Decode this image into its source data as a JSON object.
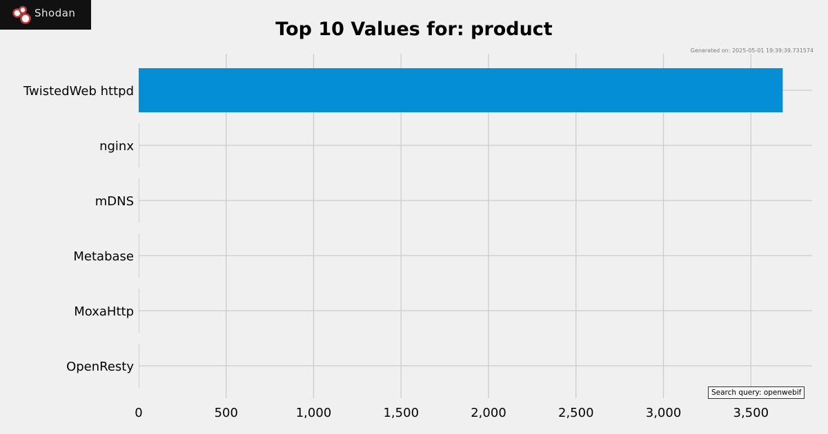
{
  "logo": {
    "text": "Shodan"
  },
  "title": "Top 10 Values for: product",
  "generated": "Generated on: 2025-05-01 19:39:39.731574",
  "query": "Search query: openwebif",
  "colors": {
    "bar": "#038ed5",
    "grid": "#cbcbcb",
    "background": "#f0f0f0"
  },
  "chart_data": {
    "type": "bar",
    "orientation": "horizontal",
    "title": "Top 10 Values for: product",
    "categories": [
      "TwistedWeb httpd",
      "nginx",
      "mDNS",
      "Metabase",
      "MoxaHttp",
      "OpenResty"
    ],
    "values": [
      3682,
      1,
      1,
      1,
      1,
      1
    ],
    "xlim": [
      0,
      3850
    ],
    "xticks": [
      0,
      500,
      1000,
      1500,
      2000,
      2500,
      3000,
      3500
    ],
    "xtick_labels": [
      "0",
      "500",
      "1,000",
      "1,500",
      "2,000",
      "2,500",
      "3,000",
      "3,500"
    ],
    "grid": true,
    "xlabel": "",
    "ylabel": ""
  }
}
